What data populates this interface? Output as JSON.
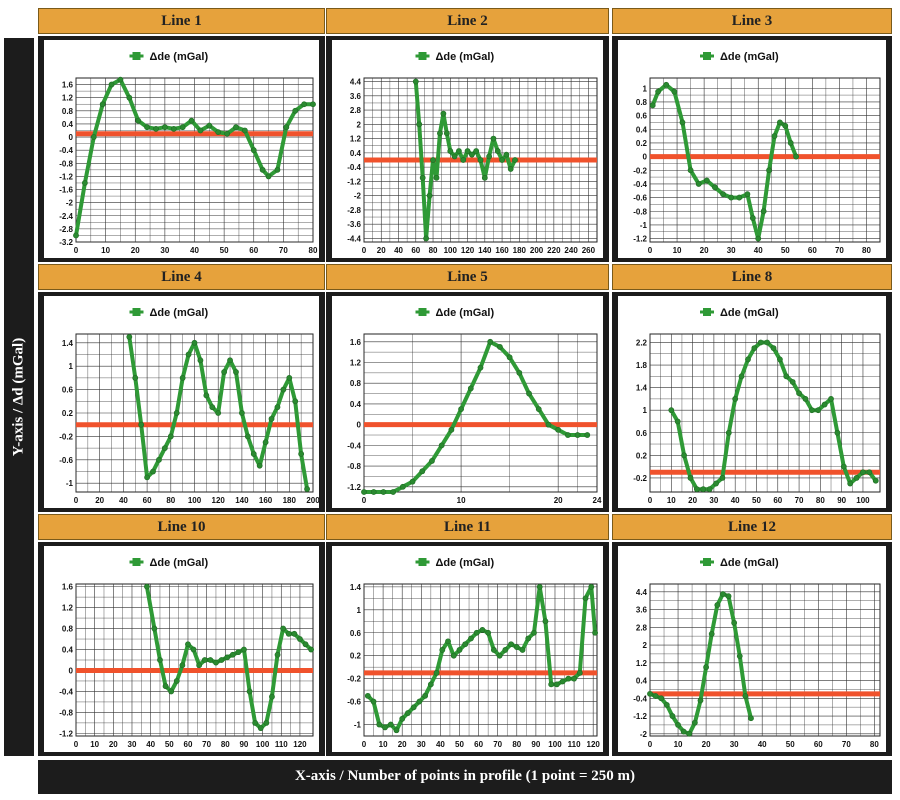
{
  "figure": {
    "y_axis_label": "Y-axis / Δd (mGal)",
    "x_axis_label": "X-axis / Number of points in profile (1 point = 250 m)"
  },
  "colors": {
    "series": "#2f9a36",
    "reference_line": "#f0522c",
    "header_bg": "#e6a23c",
    "frame": "#1c1c1c"
  },
  "chart_data": [
    {
      "type": "line",
      "title": "Line 1",
      "legend": "Δde (mGal)",
      "xlim": [
        0,
        80
      ],
      "ylim": [
        -3.2,
        1.8
      ],
      "grid": true,
      "xticks": [
        0,
        10,
        20,
        30,
        40,
        50,
        60,
        70,
        80
      ],
      "yticks": [
        -3.2,
        -2.8,
        -2.4,
        -2.0,
        -1.6,
        -1.2,
        -0.8,
        -0.4,
        0.0,
        0.4,
        0.8,
        1.2,
        1.6
      ],
      "reference_y": 0.1,
      "x": [
        0,
        3,
        6,
        9,
        12,
        15,
        18,
        21,
        24,
        27,
        30,
        33,
        36,
        39,
        42,
        45,
        48,
        51,
        54,
        57,
        60,
        63,
        65,
        68,
        71,
        74,
        77,
        80
      ],
      "y": [
        -3.0,
        -1.4,
        0.0,
        1.0,
        1.6,
        1.75,
        1.2,
        0.5,
        0.3,
        0.25,
        0.3,
        0.25,
        0.3,
        0.5,
        0.2,
        0.35,
        0.15,
        0.1,
        0.3,
        0.2,
        -0.4,
        -1.0,
        -1.2,
        -1.0,
        0.3,
        0.8,
        1.0,
        1.0
      ]
    },
    {
      "type": "line",
      "title": "Line 2",
      "legend": "Δde (mGal)",
      "xlim": [
        0,
        270
      ],
      "ylim": [
        -4.6,
        4.6
      ],
      "grid": true,
      "xticks": [
        0,
        20,
        40,
        60,
        80,
        100,
        120,
        140,
        160,
        180,
        200,
        220,
        240,
        260
      ],
      "yticks": [
        -4.4,
        -3.6,
        -2.8,
        -2.0,
        -1.2,
        -0.4,
        0.4,
        1.2,
        2.0,
        2.8,
        3.6,
        4.4
      ],
      "reference_y": 0.0,
      "x": [
        60,
        64,
        68,
        72,
        76,
        80,
        84,
        88,
        92,
        96,
        100,
        105,
        110,
        115,
        120,
        125,
        130,
        135,
        140,
        145,
        150,
        155,
        160,
        165,
        170,
        175
      ],
      "y": [
        4.4,
        2.0,
        -1.0,
        -4.4,
        -2.0,
        0.0,
        -1.0,
        1.5,
        2.6,
        1.5,
        0.5,
        0.2,
        0.5,
        0.0,
        0.5,
        0.3,
        0.5,
        0.0,
        -1.0,
        0.2,
        1.2,
        0.5,
        0.0,
        0.3,
        -0.5,
        0.0
      ]
    },
    {
      "type": "line",
      "title": "Line 3",
      "legend": "Δde (mGal)",
      "xlim": [
        0,
        85
      ],
      "ylim": [
        -1.25,
        1.15
      ],
      "grid": true,
      "xticks": [
        0,
        10,
        20,
        30,
        40,
        50,
        60,
        70,
        80
      ],
      "yticks": [
        -1.2,
        -1.0,
        -0.8,
        -0.6,
        -0.4,
        -0.2,
        0.0,
        0.2,
        0.4,
        0.6,
        0.8,
        1.0
      ],
      "reference_y": 0.0,
      "x": [
        1,
        3,
        6,
        9,
        12,
        15,
        18,
        21,
        24,
        27,
        30,
        33,
        36,
        38,
        40,
        42,
        44,
        46,
        48,
        50,
        52,
        54
      ],
      "y": [
        0.75,
        0.95,
        1.05,
        0.95,
        0.5,
        -0.2,
        -0.4,
        -0.35,
        -0.45,
        -0.55,
        -0.6,
        -0.6,
        -0.55,
        -0.9,
        -1.2,
        -0.8,
        -0.2,
        0.3,
        0.5,
        0.45,
        0.2,
        0.0
      ]
    },
    {
      "type": "line",
      "title": "Line 4",
      "legend": "Δde (mGal)",
      "xlim": [
        0,
        200
      ],
      "ylim": [
        -1.15,
        1.55
      ],
      "grid": true,
      "xticks": [
        0,
        20,
        40,
        60,
        80,
        100,
        120,
        140,
        160,
        180,
        200
      ],
      "yticks": [
        -1.0,
        -0.6,
        -0.2,
        0.2,
        0.6,
        1.0,
        1.4
      ],
      "reference_y": 0.0,
      "x": [
        45,
        50,
        55,
        60,
        65,
        70,
        75,
        80,
        85,
        90,
        95,
        100,
        105,
        110,
        115,
        120,
        125,
        130,
        135,
        140,
        145,
        150,
        155,
        160,
        165,
        170,
        175,
        180,
        185,
        190,
        195
      ],
      "y": [
        1.5,
        0.8,
        0.0,
        -0.9,
        -0.8,
        -0.6,
        -0.4,
        -0.2,
        0.2,
        0.8,
        1.2,
        1.4,
        1.1,
        0.5,
        0.3,
        0.2,
        0.9,
        1.1,
        0.9,
        0.2,
        -0.2,
        -0.5,
        -0.7,
        -0.3,
        0.1,
        0.3,
        0.6,
        0.8,
        0.4,
        -0.5,
        -1.1
      ]
    },
    {
      "type": "line",
      "title": "Line 5",
      "legend": "Δde (mGal)",
      "xlim": [
        0,
        24
      ],
      "ylim": [
        -1.3,
        1.75
      ],
      "grid": true,
      "xticks": [
        0,
        10,
        20,
        24
      ],
      "yticks": [
        -1.2,
        -0.8,
        -0.4,
        0.0,
        0.4,
        0.8,
        1.2,
        1.6
      ],
      "reference_y": 0.0,
      "x": [
        0,
        1,
        2,
        3,
        4,
        5,
        6,
        7,
        8,
        9,
        10,
        11,
        12,
        13,
        14,
        15,
        16,
        17,
        18,
        19,
        20,
        21,
        22,
        23
      ],
      "y": [
        -1.3,
        -1.3,
        -1.3,
        -1.3,
        -1.2,
        -1.1,
        -0.9,
        -0.7,
        -0.4,
        -0.1,
        0.3,
        0.7,
        1.1,
        1.6,
        1.5,
        1.3,
        1.0,
        0.6,
        0.3,
        0.0,
        -0.1,
        -0.2,
        -0.2,
        -0.2
      ]
    },
    {
      "type": "line",
      "title": "Line 8",
      "legend": "Δde (mGal)",
      "xlim": [
        0,
        108
      ],
      "ylim": [
        -0.45,
        2.35
      ],
      "grid": true,
      "xticks": [
        0,
        10,
        20,
        30,
        40,
        50,
        60,
        70,
        80,
        90,
        100
      ],
      "yticks": [
        -0.2,
        0.2,
        0.6,
        1.0,
        1.4,
        1.8,
        2.2
      ],
      "reference_y": -0.1,
      "x": [
        10,
        13,
        16,
        19,
        22,
        25,
        28,
        31,
        34,
        37,
        40,
        43,
        46,
        49,
        52,
        55,
        58,
        61,
        64,
        67,
        70,
        73,
        76,
        79,
        82,
        85,
        88,
        91,
        94,
        97,
        100,
        103,
        106
      ],
      "y": [
        1.0,
        0.8,
        0.2,
        -0.2,
        -0.4,
        -0.4,
        -0.4,
        -0.3,
        -0.2,
        0.6,
        1.2,
        1.6,
        1.9,
        2.1,
        2.2,
        2.2,
        2.1,
        1.9,
        1.6,
        1.5,
        1.3,
        1.2,
        1.0,
        1.0,
        1.1,
        1.2,
        0.6,
        0.0,
        -0.3,
        -0.2,
        -0.1,
        -0.1,
        -0.25
      ]
    },
    {
      "type": "line",
      "title": "Line 10",
      "legend": "Δde (mGal)",
      "xlim": [
        0,
        127
      ],
      "ylim": [
        -1.25,
        1.65
      ],
      "grid": true,
      "xticks": [
        0,
        10,
        20,
        30,
        40,
        50,
        60,
        70,
        80,
        90,
        100,
        110,
        120
      ],
      "yticks": [
        -1.2,
        -0.8,
        -0.4,
        0.0,
        0.4,
        0.8,
        1.2,
        1.6
      ],
      "reference_y": 0.0,
      "x": [
        38,
        42,
        45,
        48,
        51,
        54,
        57,
        60,
        63,
        66,
        69,
        72,
        75,
        78,
        81,
        84,
        87,
        90,
        93,
        96,
        99,
        102,
        105,
        108,
        111,
        114,
        117,
        120,
        123,
        126
      ],
      "y": [
        1.6,
        0.8,
        0.2,
        -0.3,
        -0.4,
        -0.2,
        0.1,
        0.5,
        0.4,
        0.1,
        0.2,
        0.2,
        0.15,
        0.2,
        0.25,
        0.3,
        0.35,
        0.4,
        -0.4,
        -1.0,
        -1.1,
        -1.0,
        -0.5,
        0.3,
        0.8,
        0.7,
        0.7,
        0.6,
        0.5,
        0.4
      ]
    },
    {
      "type": "line",
      "title": "Line 11",
      "legend": "Δde (mGal)",
      "xlim": [
        0,
        122
      ],
      "ylim": [
        -1.2,
        1.45
      ],
      "grid": true,
      "xticks": [
        0,
        10,
        20,
        30,
        40,
        50,
        60,
        70,
        80,
        90,
        100,
        110,
        120
      ],
      "yticks": [
        -1.0,
        -0.6,
        -0.2,
        0.2,
        0.6,
        1.0,
        1.4
      ],
      "reference_y": -0.1,
      "x": [
        2,
        5,
        8,
        11,
        14,
        17,
        20,
        23,
        26,
        29,
        32,
        35,
        38,
        41,
        44,
        47,
        50,
        53,
        56,
        59,
        62,
        65,
        68,
        71,
        74,
        77,
        80,
        83,
        86,
        89,
        92,
        95,
        98,
        101,
        104,
        107,
        110,
        113,
        116,
        119,
        121
      ],
      "y": [
        -0.5,
        -0.6,
        -1.0,
        -1.05,
        -1.0,
        -1.1,
        -0.9,
        -0.8,
        -0.7,
        -0.6,
        -0.5,
        -0.3,
        -0.1,
        0.3,
        0.45,
        0.2,
        0.3,
        0.4,
        0.5,
        0.6,
        0.65,
        0.6,
        0.3,
        0.2,
        0.3,
        0.4,
        0.35,
        0.3,
        0.5,
        0.6,
        1.4,
        0.8,
        -0.3,
        -0.3,
        -0.25,
        -0.2,
        -0.2,
        -0.1,
        1.2,
        1.4,
        0.6
      ]
    },
    {
      "type": "line",
      "title": "Line 12",
      "legend": "Δde (mGal)",
      "xlim": [
        0,
        82
      ],
      "ylim": [
        -2.1,
        4.75
      ],
      "grid": true,
      "xticks": [
        0,
        10,
        20,
        30,
        40,
        50,
        60,
        70,
        80
      ],
      "yticks": [
        -2.0,
        -1.2,
        -0.4,
        0.4,
        1.2,
        2.0,
        2.8,
        3.6,
        4.4
      ],
      "reference_y": -0.2,
      "x": [
        0,
        2,
        4,
        6,
        8,
        10,
        12,
        14,
        16,
        18,
        20,
        22,
        24,
        26,
        28,
        30,
        32,
        34,
        36
      ],
      "y": [
        -0.2,
        -0.3,
        -0.4,
        -0.7,
        -1.2,
        -1.6,
        -1.9,
        -2.0,
        -1.5,
        -0.5,
        1.0,
        2.5,
        3.8,
        4.3,
        4.2,
        3.0,
        1.5,
        -0.3,
        -1.3
      ]
    }
  ]
}
